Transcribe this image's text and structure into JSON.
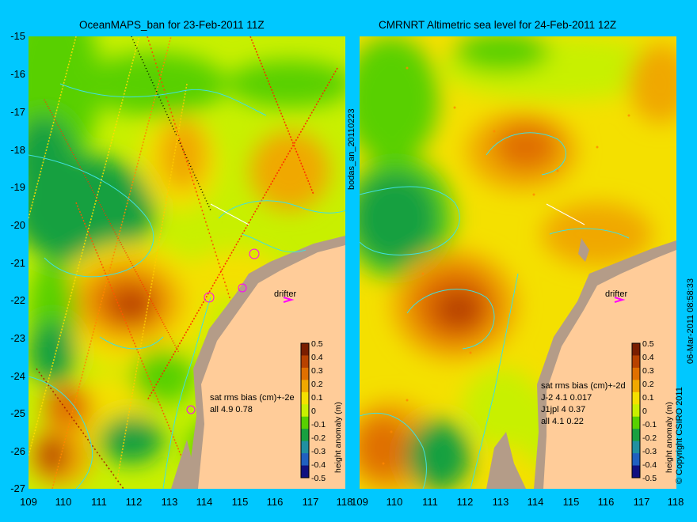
{
  "panels": {
    "left_title": "OceanMAPS_ban for 23-Feb-2011 11Z",
    "right_title": "CMRNRT Altimetric sea level  for 24-Feb-2011 12Z"
  },
  "axes": {
    "y_ticks": [
      "-15",
      "-16",
      "-17",
      "-18",
      "-19",
      "-20",
      "-21",
      "-22",
      "-23",
      "-24",
      "-25",
      "-26",
      "-27"
    ],
    "x_ticks_left": [
      "109",
      "110",
      "111",
      "112",
      "113",
      "114",
      "115",
      "116",
      "117",
      "118"
    ],
    "x_ticks_right": [
      "109",
      "110",
      "111",
      "112",
      "113",
      "114",
      "115",
      "116",
      "117",
      "118"
    ]
  },
  "annotations": {
    "left_stats_header": "sat rms bias (cm)+-2e",
    "left_stats_1": "all 4.9 0.78",
    "right_stats_header": "sat rms bias (cm)+-2d",
    "right_stats_1": "J-2   4.1 0.017",
    "right_stats_2": "J1jpl 4 0.37",
    "right_stats_3": "all 4.1 0.22",
    "drifter_left": "drifter",
    "drifter_right": "drifter",
    "side_label": "bodas_an_20110223",
    "timestamp": "06-Mar-2011 08:58:33",
    "copyright": "© Copyright CSIRO 2011"
  },
  "colorbar": {
    "label": "height anomaly (m)",
    "ticks": [
      "0.5",
      "0.4",
      "0.3",
      "0.2",
      "0.1",
      "0",
      "-0.1",
      "-0.2",
      "-0.3",
      "-0.4",
      "-0.5"
    ],
    "colors": [
      "#7a1e00",
      "#b84200",
      "#e07000",
      "#f0a800",
      "#f4e000",
      "#c8f000",
      "#58d000",
      "#18a040",
      "#2090a0",
      "#2060c0",
      "#101080"
    ]
  },
  "colors": {
    "land": "#ffcc99",
    "coast_shelf": "#b49c88",
    "contour": "#40e0e0",
    "drifter_arrow": "#ff00ff"
  }
}
